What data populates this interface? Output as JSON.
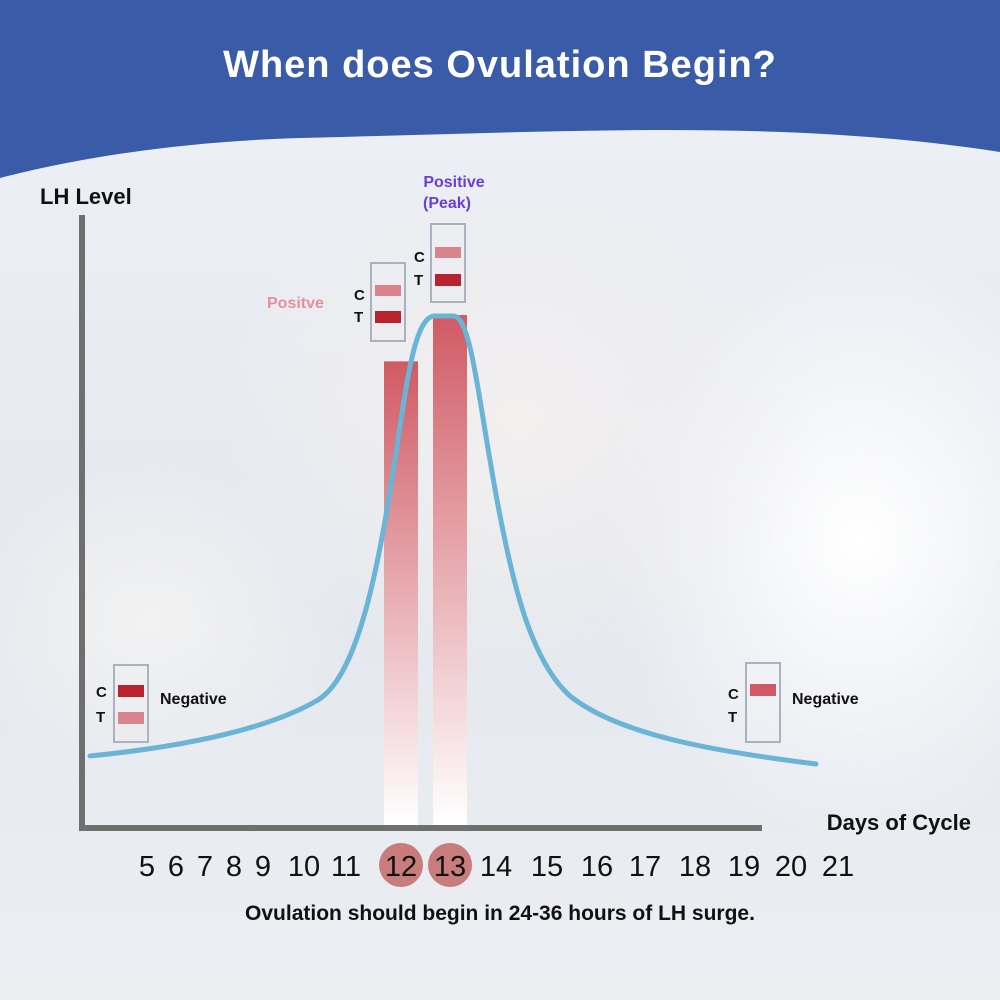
{
  "title": "When does Ovulation Begin?",
  "caption": "Ovulation should begin in 24-36 hours of LH surge.",
  "colors": {
    "header": "#3a5ba8",
    "curve": "#6ab4d6",
    "bar": "#d05a64",
    "strip_dark": "#b8232e",
    "strip_light": "#d9848c",
    "positive_text": "#e4919a",
    "peak_text": "#6a3fd8",
    "highlight_circle": "#c97c7c"
  },
  "chart_data": {
    "type": "line",
    "ylabel": "LH Level",
    "xlabel": "Days of Cycle",
    "categories": [
      "5",
      "6",
      "7",
      "8",
      "9",
      "10",
      "11",
      "12",
      "13",
      "14",
      "15",
      "16",
      "17",
      "18",
      "19",
      "20",
      "21"
    ],
    "highlighted_days": [
      "12",
      "13"
    ],
    "bars": [
      {
        "day": "12",
        "value": 0.7
      },
      {
        "day": "13",
        "value": 0.77
      }
    ],
    "curve_shape": "LH surge curve rising from day 5, peaking at day 13, then falling through day 21",
    "annotations": [
      {
        "label": "Negative",
        "strip": [
          "C",
          "T"
        ],
        "c_band": "dark",
        "t_band": "light",
        "day": "5"
      },
      {
        "label": "Positve",
        "strip": [
          "C",
          "T"
        ],
        "c_band": "light",
        "t_band": "dark",
        "day": "12"
      },
      {
        "label": "Positive",
        "sublabel": "(Peak)",
        "strip": [
          "C",
          "T"
        ],
        "c_band": "light",
        "t_band": "dark",
        "day": "13"
      },
      {
        "label": "Negative",
        "strip": [
          "C",
          "T"
        ],
        "c_band": "dark",
        "t_band": "none",
        "day": "21"
      }
    ]
  }
}
